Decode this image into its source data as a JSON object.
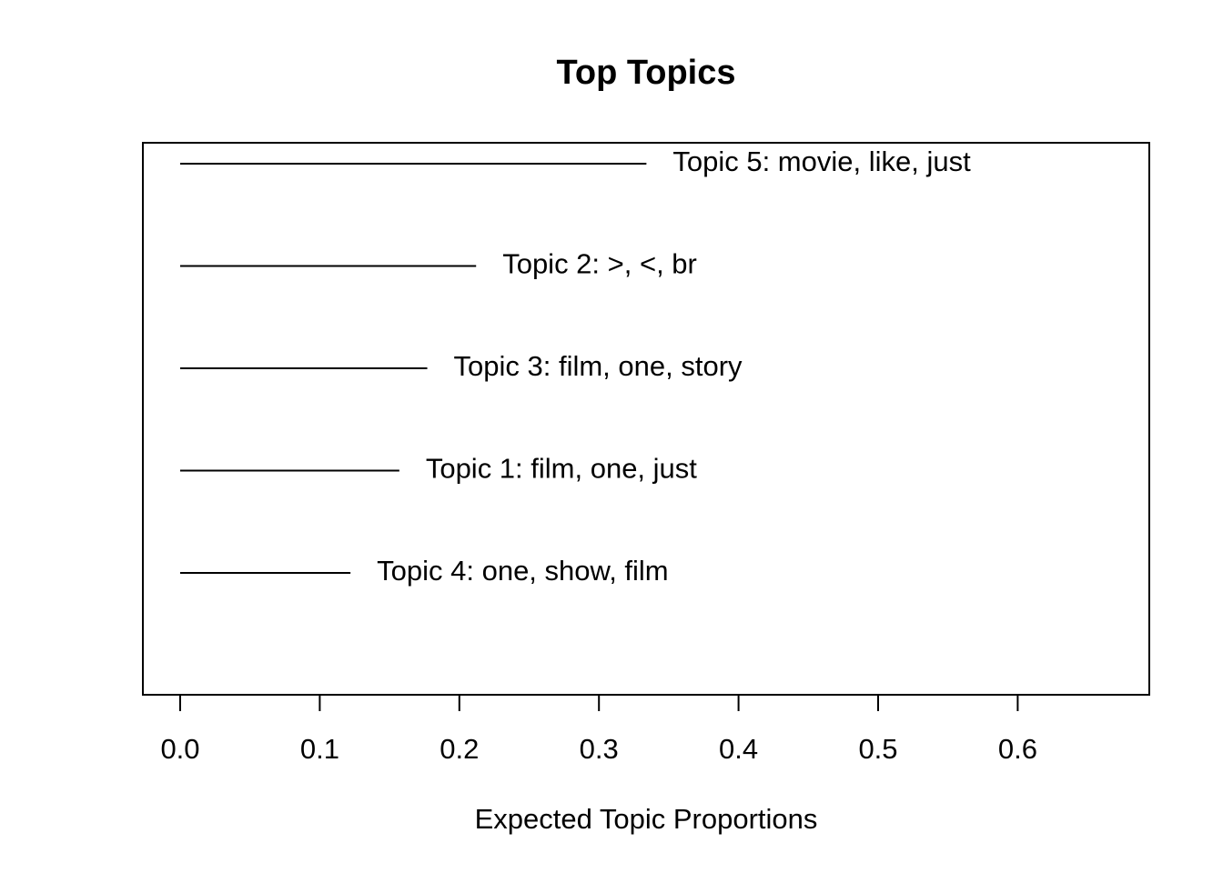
{
  "chart_data": {
    "type": "bar",
    "title": "Top Topics",
    "xlabel": "Expected Topic Proportions",
    "ylabel": "",
    "xlim": [
      0,
      0.7
    ],
    "xticks": [
      0.0,
      0.1,
      0.2,
      0.3,
      0.4,
      0.5,
      0.6
    ],
    "xtick_labels": [
      "0.0",
      "0.1",
      "0.2",
      "0.3",
      "0.4",
      "0.5",
      "0.6"
    ],
    "orientation": "horizontal",
    "bar_style": "line segment",
    "categories": [
      "Topic 5: movie, like, just",
      "Topic 2: >, <, br",
      "Topic 3: film, one, story",
      "Topic 1: film, one, just",
      "Topic 4: one, show, film"
    ],
    "values": [
      0.334,
      0.212,
      0.177,
      0.157,
      0.122
    ],
    "grid": false,
    "legend": "none",
    "colors": {
      "line": "#000000",
      "background": "#ffffff"
    }
  }
}
